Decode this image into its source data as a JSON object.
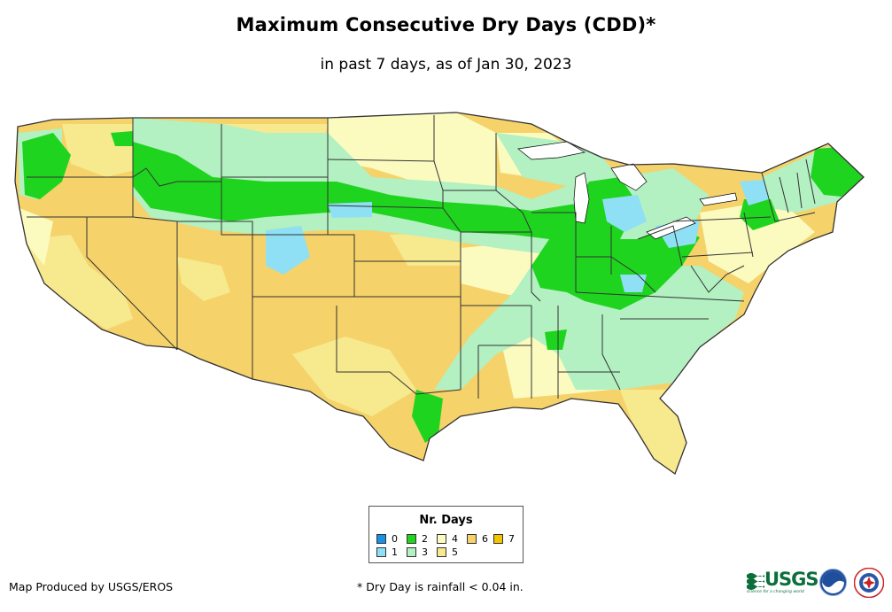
{
  "title": "Maximum Consecutive Dry Days (CDD)*",
  "subtitle": "in past 7 days, as of Jan 30, 2023",
  "legend": {
    "title": "Nr. Days",
    "items": [
      {
        "label": "0",
        "color": "#1a8fe6"
      },
      {
        "label": "1",
        "color": "#8fe0f5"
      },
      {
        "label": "2",
        "color": "#1fd41f"
      },
      {
        "label": "3",
        "color": "#b3f0c2"
      },
      {
        "label": "4",
        "color": "#fbfbc0"
      },
      {
        "label": "5",
        "color": "#f7e98e"
      },
      {
        "label": "6",
        "color": "#f5d26a"
      },
      {
        "label": "7",
        "color": "#f5c400"
      }
    ]
  },
  "footer": {
    "credit": "Map Produced by USGS/EROS",
    "note": "* Dry Day is rainfall < 0.04 in."
  },
  "logos": {
    "usgs_text": "USGS",
    "usgs_tagline": "science for a changing world"
  }
}
